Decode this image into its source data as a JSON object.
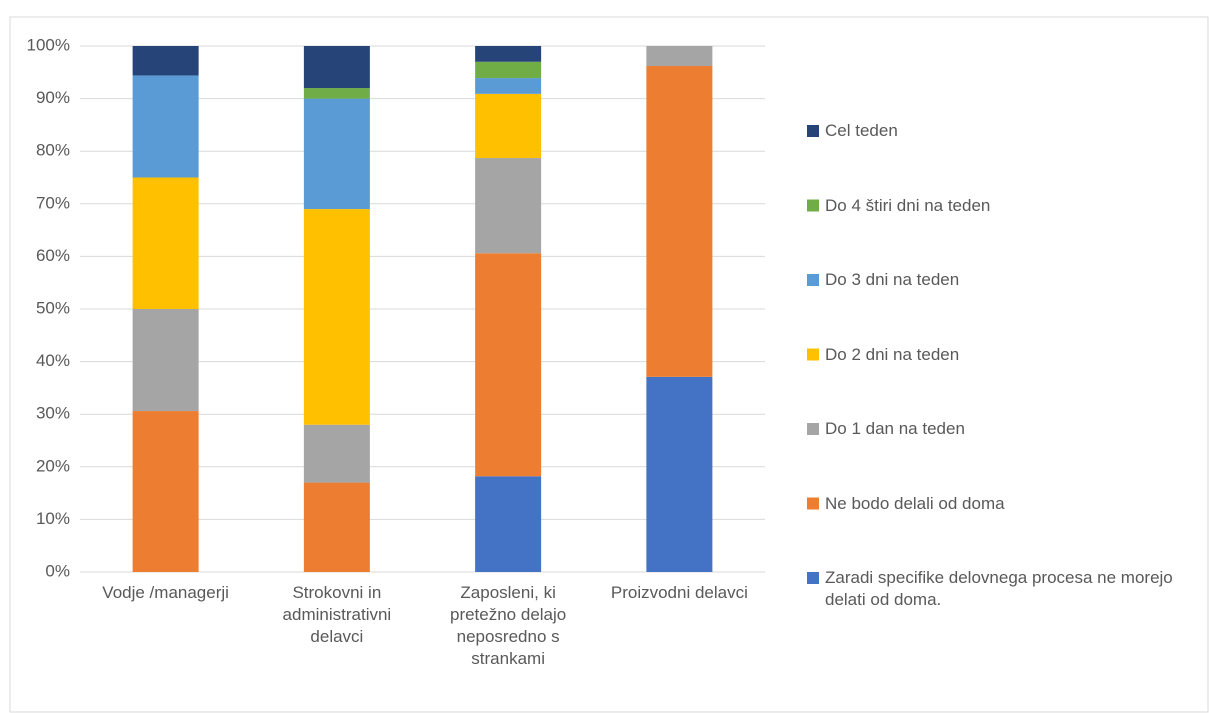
{
  "chart_data": {
    "type": "stacked_bar",
    "categories": [
      "Vodje /managerji",
      "Strokovni in administrativni delavci",
      "Zaposleni, ki pretežno delajo neposredno s strankami",
      "Proizvodni delavci"
    ],
    "series": [
      {
        "name": "Zaradi specifike delovnega procesa ne morejo delati od doma.",
        "color": "#4472c4",
        "values": [
          0,
          0,
          18.2,
          37.1
        ]
      },
      {
        "name": "Ne bodo delali od doma",
        "color": "#ed7d31",
        "values": [
          30.6,
          17,
          42.4,
          59.1
        ]
      },
      {
        "name": "Do 1 dan na teden",
        "color": "#a5a5a5",
        "values": [
          19.4,
          11,
          18.1,
          3.8
        ]
      },
      {
        "name": "Do 2 dni na teden",
        "color": "#ffc000",
        "values": [
          25,
          41,
          12.2,
          0
        ]
      },
      {
        "name": "Do 3 dni na teden",
        "color": "#5b9bd5",
        "values": [
          19.4,
          21,
          3,
          0
        ]
      },
      {
        "name": "Do 4 štiri dni na teden",
        "color": "#70ad47",
        "values": [
          0,
          2,
          3.1,
          0
        ]
      },
      {
        "name": "Cel teden",
        "color": "#264478",
        "values": [
          5.6,
          8,
          3,
          0
        ]
      }
    ],
    "ylim": [
      0,
      100
    ],
    "yticks": [
      {
        "value": 0,
        "label": "0%"
      },
      {
        "value": 10,
        "label": "10%"
      },
      {
        "value": 20,
        "label": "20%"
      },
      {
        "value": 30,
        "label": "30%"
      },
      {
        "value": 40,
        "label": "40%"
      },
      {
        "value": 50,
        "label": "50%"
      },
      {
        "value": 60,
        "label": "60%"
      },
      {
        "value": 70,
        "label": "70%"
      },
      {
        "value": 80,
        "label": "80%"
      },
      {
        "value": 90,
        "label": "90%"
      },
      {
        "value": 100,
        "label": "100%"
      }
    ],
    "grid": true,
    "legend": "right"
  }
}
